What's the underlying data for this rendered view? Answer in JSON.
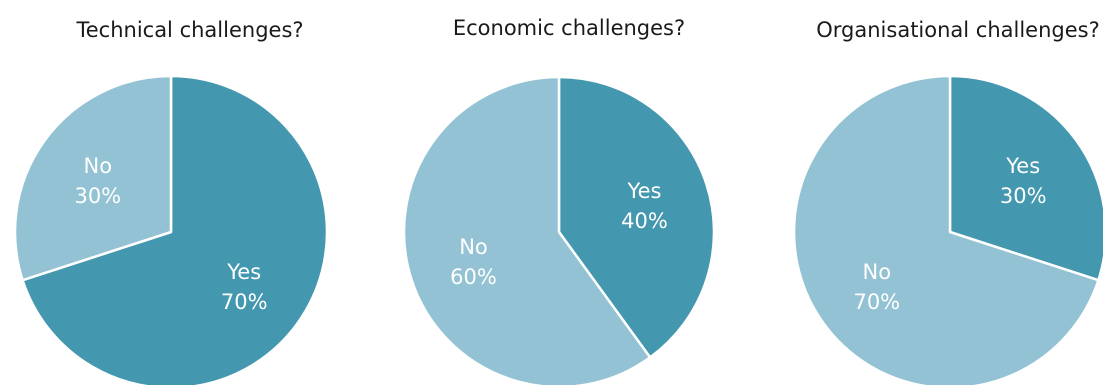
{
  "colors": {
    "yes": "#4397AF",
    "no": "#93C2D4",
    "stroke": "#ffffff"
  },
  "chart_data": [
    {
      "type": "pie",
      "title": "Technical challenges?",
      "categories": [
        "Yes",
        "No"
      ],
      "values": [
        70,
        30
      ],
      "labels": [
        "70%",
        "30%"
      ]
    },
    {
      "type": "pie",
      "title": "Economic challenges?",
      "categories": [
        "Yes",
        "No"
      ],
      "values": [
        40,
        60
      ],
      "labels": [
        "40%",
        "60%"
      ]
    },
    {
      "type": "pie",
      "title": "Organisational challenges?",
      "categories": [
        "Yes",
        "No"
      ],
      "values": [
        30,
        70
      ],
      "labels": [
        "30%",
        "70%"
      ]
    }
  ]
}
